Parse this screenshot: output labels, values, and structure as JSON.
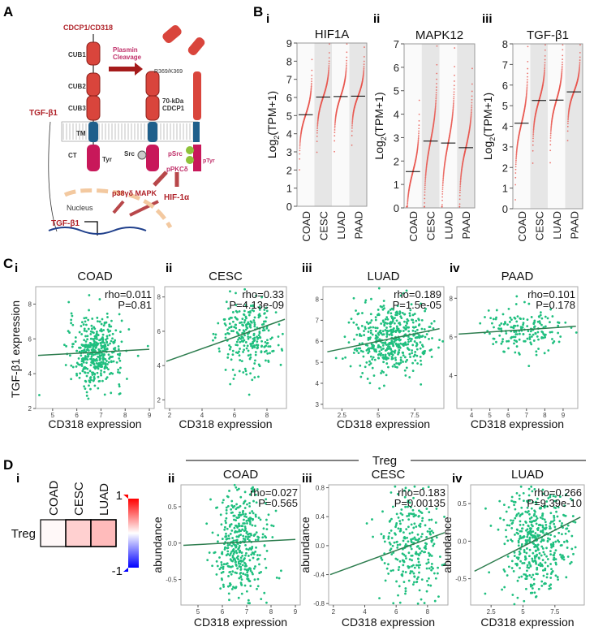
{
  "panel_labels": {
    "A": "A",
    "B": "B",
    "C": "C",
    "D": "D"
  },
  "sub_labels": {
    "i": "i",
    "ii": "ii",
    "iii": "iii",
    "iv": "iv"
  },
  "diagram": {
    "protein": "CDCP1/CD318",
    "cub1": "CUB1",
    "cub2": "CUB2",
    "cub3": "CUB3",
    "tm": "TM",
    "ct": "CT",
    "tyr": "Tyr",
    "src": "Src",
    "cleavage_1": "Plasmin",
    "cleavage_2": "Cleavage",
    "site": "R369/K369",
    "fragment_1": "70-kDa",
    "fragment_2": "CDCP1",
    "psrc": "pSrc",
    "ppkc": "pPKCδ",
    "ptyr": "pTyr",
    "mapk": "p38γδ MAPK",
    "hif": "HIF-1α",
    "nucleus": "Nucleus",
    "tgf_out": "TGF-β1",
    "tgf_gene": "TGF-β1",
    "colors": {
      "cub": "#d9453c",
      "tm": "#1f5f8b",
      "ct": "#c8185a",
      "text": "#b0232a"
    }
  },
  "chart_data": [
    {
      "type": "scatter",
      "panel": "B-i",
      "title": "HIF1A",
      "ylabel": "Log2(TPM+1)",
      "categories": [
        "COAD",
        "CESC",
        "LUAD",
        "PAAD"
      ],
      "medians": [
        5.05,
        6.02,
        6.05,
        6.07
      ],
      "ylim": [
        0,
        9
      ],
      "yticks": [
        0,
        1,
        2,
        3,
        4,
        5,
        6,
        7,
        8,
        9
      ]
    },
    {
      "type": "scatter",
      "panel": "B-ii",
      "title": "MAPK12",
      "ylabel": "Log2(TPM+1)",
      "categories": [
        "COAD",
        "CESC",
        "LUAD",
        "PAAD"
      ],
      "medians": [
        1.55,
        2.85,
        2.77,
        2.57
      ],
      "ylim": [
        0,
        7
      ],
      "yticks": [
        0,
        1,
        2,
        3,
        4,
        5,
        6,
        7
      ]
    },
    {
      "type": "scatter",
      "panel": "B-iii",
      "title": "TGF-β1",
      "ylabel": "Log2(TPM+1)",
      "categories": [
        "COAD",
        "CESC",
        "LUAD",
        "PAAD"
      ],
      "medians": [
        4.15,
        5.25,
        5.27,
        5.67
      ],
      "ylim": [
        0,
        8
      ],
      "yticks": [
        0,
        1,
        2,
        3,
        4,
        5,
        6,
        7,
        8
      ]
    },
    {
      "type": "scatter",
      "panel": "C-i",
      "title": "COAD",
      "rho": "rho=0.011",
      "p": "P=0.81",
      "xlabel": "CD318 expression",
      "ylabel": "TGF-β1 expression",
      "xlim": [
        4.3,
        9.2
      ],
      "ylim": [
        2,
        9
      ],
      "xticks": [
        5,
        6,
        7,
        8,
        9
      ],
      "yticks": [
        2,
        4,
        6,
        8
      ],
      "fit": [
        [
          4.4,
          5.05
        ],
        [
          9.0,
          5.4
        ]
      ]
    },
    {
      "type": "scatter",
      "panel": "C-ii",
      "title": "CESC",
      "rho": "rho=0.33",
      "p": "P=4.13e-09",
      "xlabel": "CD318 expression",
      "xlim": [
        1.7,
        9.2
      ],
      "ylim": [
        1.5,
        8.6
      ],
      "xticks": [
        2,
        4,
        6,
        8
      ],
      "yticks": [
        2,
        4,
        6,
        8
      ],
      "fit": [
        [
          1.8,
          4.25
        ],
        [
          9.1,
          6.7
        ]
      ]
    },
    {
      "type": "scatter",
      "panel": "C-iii",
      "title": "LUAD",
      "rho": "rho=0.189",
      "p": "P=1.5e-05",
      "xlabel": "CD318 expression",
      "xlim": [
        1.2,
        9.5
      ],
      "ylim": [
        2.8,
        8.6
      ],
      "xticks": [
        2.5,
        5.0,
        7.5
      ],
      "yticks": [
        3,
        4,
        5,
        6,
        7,
        8
      ],
      "fit": [
        [
          1.5,
          5.5
        ],
        [
          9.2,
          6.6
        ]
      ]
    },
    {
      "type": "scatter",
      "panel": "C-iv",
      "title": "PAAD",
      "rho": "rho=0.101",
      "p": "P=0.178",
      "xlabel": "CD318 expression",
      "xlim": [
        3.2,
        9.8
      ],
      "ylim": [
        2.3,
        8.6
      ],
      "xticks": [
        4,
        5,
        6,
        7,
        8,
        9
      ],
      "yticks": [
        4,
        6,
        8
      ],
      "fit": [
        [
          3.3,
          6.15
        ],
        [
          9.7,
          6.55
        ]
      ]
    },
    {
      "type": "heatmap",
      "panel": "D-i",
      "rows": [
        "Treg"
      ],
      "columns": [
        "COAD",
        "CESC",
        "LUAD"
      ],
      "values": [
        [
          0.027,
          0.183,
          0.266
        ]
      ],
      "colorbar": {
        "min": -1,
        "max": 1,
        "min_label": "-1",
        "max_label": "1",
        "low": "#0000ff",
        "mid": "#ffffff",
        "high": "#ff0000"
      }
    },
    {
      "type": "scatter",
      "panel": "D-ii",
      "title": "COAD",
      "rho": "rho=0.027",
      "p": "P=0.565",
      "xlabel": "CD318 expression",
      "ylabel": "abundance",
      "xlim": [
        4.3,
        9.2
      ],
      "ylim": [
        -0.85,
        0.8
      ],
      "xticks": [
        5,
        6,
        7,
        8,
        9
      ],
      "yticks": [
        -0.5,
        0.0,
        0.5
      ],
      "fit": [
        [
          4.4,
          -0.03
        ],
        [
          9.0,
          0.05
        ]
      ]
    },
    {
      "type": "scatter",
      "panel": "D-iii",
      "title": "CESC",
      "rho": "rho=0.183",
      "p": "P=0.00135",
      "xlabel": "CD318 expression",
      "ylabel": "abundance",
      "xlim": [
        1.7,
        9.3
      ],
      "ylim": [
        -0.82,
        0.84
      ],
      "xticks": [
        2,
        4,
        6,
        8
      ],
      "yticks": [
        -0.8,
        -0.4,
        0.0,
        0.4,
        0.8
      ],
      "fit": [
        [
          1.8,
          -0.4
        ],
        [
          9.1,
          0.18
        ]
      ]
    },
    {
      "type": "scatter",
      "panel": "D-iv",
      "title": "LUAD",
      "rho": "rho=0.266",
      "p": "P=9.39e-10",
      "xlabel": "CD318 expression",
      "ylabel": "abundance",
      "xlim": [
        0.9,
        9.8
      ],
      "ylim": [
        -0.85,
        0.75
      ],
      "xticks": [
        2.5,
        5.0,
        7.5
      ],
      "yticks": [
        -0.5,
        0.0,
        0.5
      ],
      "fit": [
        [
          1.2,
          -0.4
        ],
        [
          9.5,
          0.32
        ]
      ]
    }
  ],
  "treg_header": "Treg",
  "colors": {
    "points": "#1fbf7f",
    "fit": "#2e7d4f",
    "b_points": "#e8554e",
    "lane_grey": "#e6e6e6"
  }
}
